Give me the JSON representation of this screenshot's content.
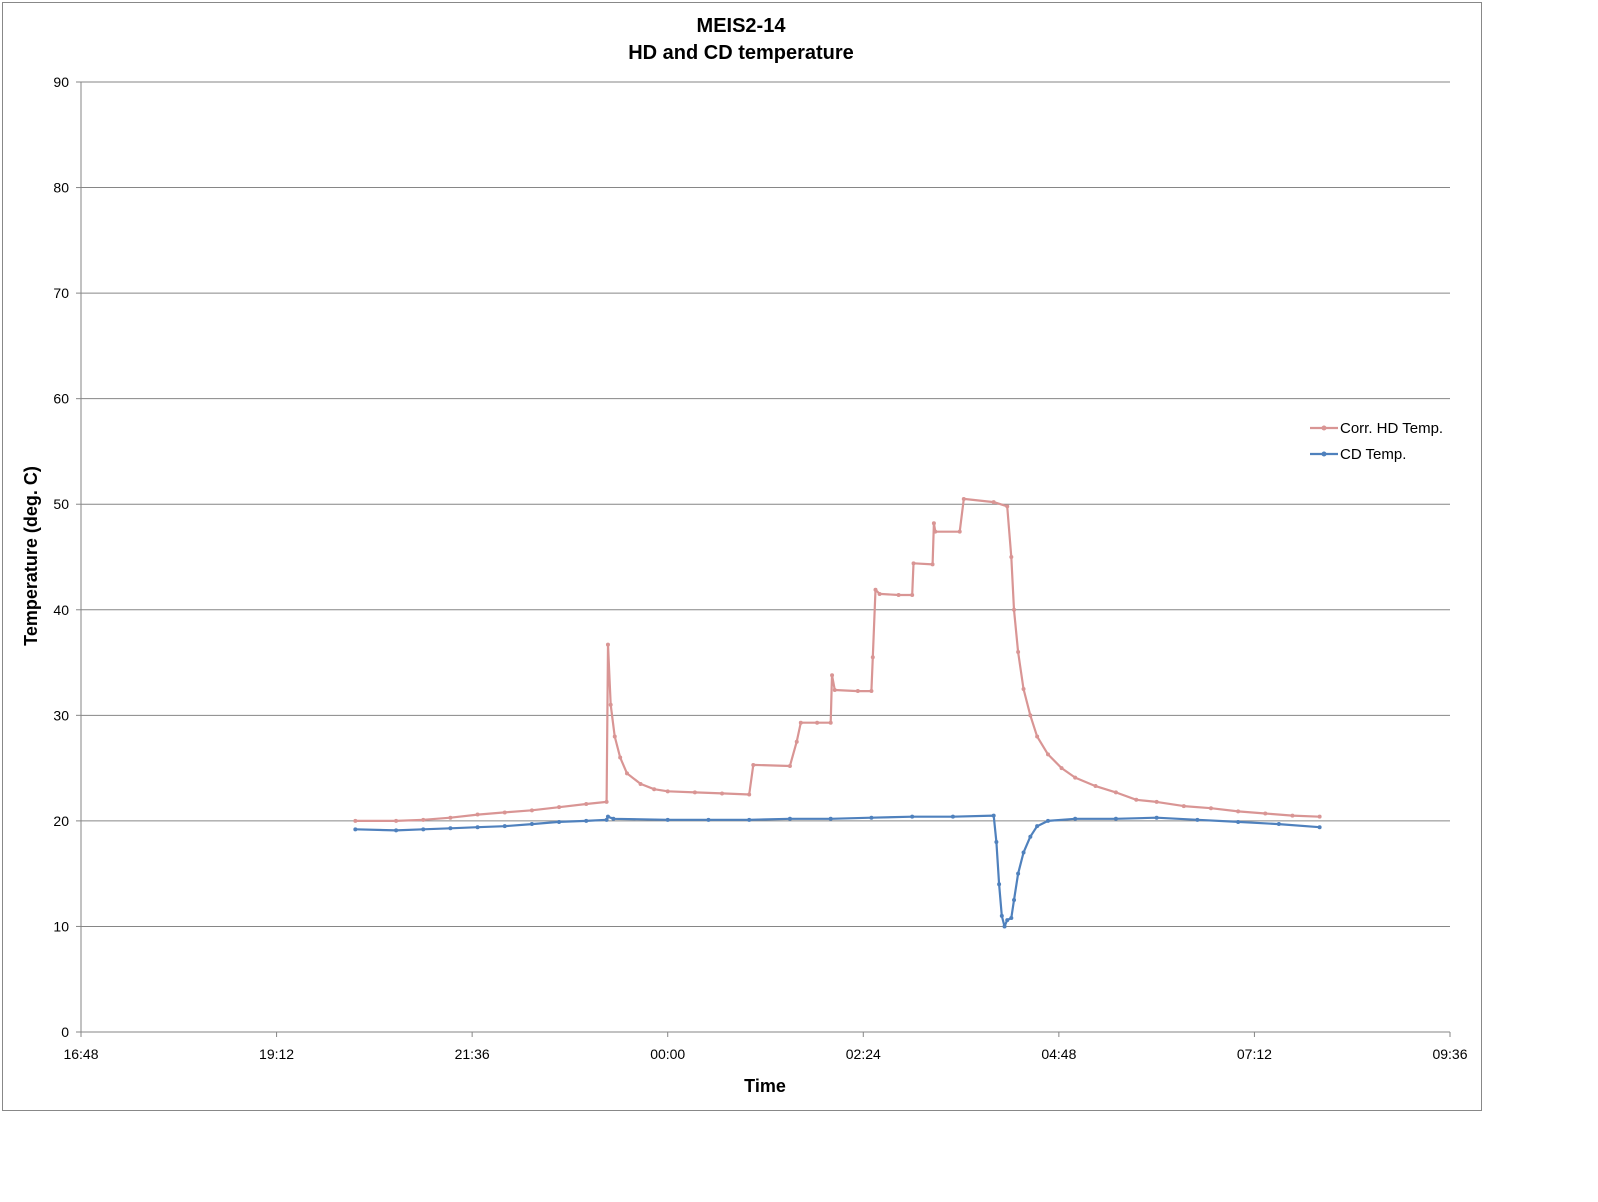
{
  "chart_data": {
    "type": "line",
    "title": "MEIS2-14",
    "subtitle": "HD and CD temperature",
    "xlabel": "Time",
    "ylabel": "Temperature (deg. C)",
    "ylim": [
      0,
      90
    ],
    "yticks": [
      0,
      10,
      20,
      30,
      40,
      50,
      60,
      70,
      80,
      90
    ],
    "xlim": [
      "16:48",
      "09:36"
    ],
    "xticks": [
      "16:48",
      "19:12",
      "21:36",
      "00:00",
      "02:24",
      "04:48",
      "07:12",
      "09:36"
    ],
    "grid": "horizontal",
    "legend_position": "right",
    "series": [
      {
        "name": "Corr. HD Temp.",
        "color": "#d99594",
        "points": [
          [
            "20:10",
            20.0
          ],
          [
            "20:40",
            20.0
          ],
          [
            "21:00",
            20.1
          ],
          [
            "21:20",
            20.3
          ],
          [
            "21:40",
            20.6
          ],
          [
            "22:00",
            20.8
          ],
          [
            "22:20",
            21.0
          ],
          [
            "22:40",
            21.3
          ],
          [
            "23:00",
            21.6
          ],
          [
            "23:15",
            21.8
          ],
          [
            "23:16",
            36.7
          ],
          [
            "23:18",
            31.0
          ],
          [
            "23:21",
            28.0
          ],
          [
            "23:25",
            26.0
          ],
          [
            "23:30",
            24.5
          ],
          [
            "23:40",
            23.5
          ],
          [
            "23:50",
            23.0
          ],
          [
            "00:00",
            22.8
          ],
          [
            "00:20",
            22.7
          ],
          [
            "00:40",
            22.6
          ],
          [
            "01:00",
            22.5
          ],
          [
            "01:03",
            25.3
          ],
          [
            "01:30",
            25.2
          ],
          [
            "01:35",
            27.5
          ],
          [
            "01:38",
            29.3
          ],
          [
            "01:50",
            29.3
          ],
          [
            "02:00",
            29.3
          ],
          [
            "02:01",
            33.8
          ],
          [
            "02:03",
            32.4
          ],
          [
            "02:20",
            32.3
          ],
          [
            "02:30",
            32.3
          ],
          [
            "02:31",
            35.5
          ],
          [
            "02:33",
            41.9
          ],
          [
            "02:36",
            41.5
          ],
          [
            "02:50",
            41.4
          ],
          [
            "03:00",
            41.4
          ],
          [
            "03:01",
            44.4
          ],
          [
            "03:15",
            44.3
          ],
          [
            "03:16",
            48.2
          ],
          [
            "03:17",
            47.4
          ],
          [
            "03:35",
            47.4
          ],
          [
            "03:38",
            50.5
          ],
          [
            "04:00",
            50.2
          ],
          [
            "04:10",
            49.8
          ],
          [
            "04:13",
            45.0
          ],
          [
            "04:15",
            40.0
          ],
          [
            "04:18",
            36.0
          ],
          [
            "04:22",
            32.5
          ],
          [
            "04:27",
            30.0
          ],
          [
            "04:32",
            28.0
          ],
          [
            "04:40",
            26.3
          ],
          [
            "04:50",
            25.0
          ],
          [
            "05:00",
            24.1
          ],
          [
            "05:15",
            23.3
          ],
          [
            "05:30",
            22.7
          ],
          [
            "05:45",
            22.0
          ],
          [
            "06:00",
            21.8
          ],
          [
            "06:20",
            21.4
          ],
          [
            "06:40",
            21.2
          ],
          [
            "07:00",
            20.9
          ],
          [
            "07:20",
            20.7
          ],
          [
            "07:40",
            20.5
          ],
          [
            "08:00",
            20.4
          ]
        ]
      },
      {
        "name": "CD Temp.",
        "color": "#4f81bd",
        "points": [
          [
            "20:10",
            19.2
          ],
          [
            "20:40",
            19.1
          ],
          [
            "21:00",
            19.2
          ],
          [
            "21:20",
            19.3
          ],
          [
            "21:40",
            19.4
          ],
          [
            "22:00",
            19.5
          ],
          [
            "22:20",
            19.7
          ],
          [
            "22:40",
            19.9
          ],
          [
            "23:00",
            20.0
          ],
          [
            "23:15",
            20.1
          ],
          [
            "23:16",
            20.4
          ],
          [
            "23:20",
            20.2
          ],
          [
            "00:00",
            20.1
          ],
          [
            "00:30",
            20.1
          ],
          [
            "01:00",
            20.1
          ],
          [
            "01:30",
            20.2
          ],
          [
            "02:00",
            20.2
          ],
          [
            "02:30",
            20.3
          ],
          [
            "03:00",
            20.4
          ],
          [
            "03:30",
            20.4
          ],
          [
            "04:00",
            20.5
          ],
          [
            "04:02",
            18.0
          ],
          [
            "04:04",
            14.0
          ],
          [
            "04:06",
            11.0
          ],
          [
            "04:08",
            10.0
          ],
          [
            "04:10",
            10.6
          ],
          [
            "04:13",
            10.8
          ],
          [
            "04:15",
            12.5
          ],
          [
            "04:18",
            15.0
          ],
          [
            "04:22",
            17.0
          ],
          [
            "04:27",
            18.5
          ],
          [
            "04:32",
            19.5
          ],
          [
            "04:40",
            20.0
          ],
          [
            "05:00",
            20.2
          ],
          [
            "05:30",
            20.2
          ],
          [
            "06:00",
            20.3
          ],
          [
            "06:30",
            20.1
          ],
          [
            "07:00",
            19.9
          ],
          [
            "07:30",
            19.7
          ],
          [
            "08:00",
            19.4
          ]
        ]
      }
    ]
  }
}
